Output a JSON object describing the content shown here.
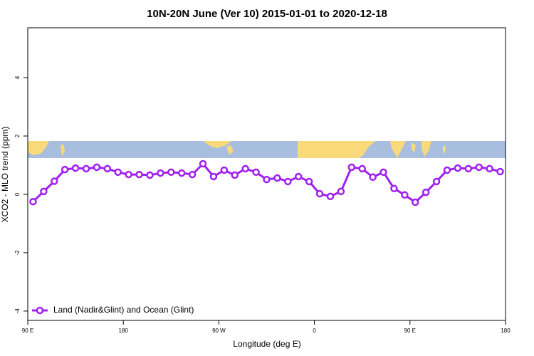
{
  "chart_data": {
    "type": "line",
    "title": "10N-20N June (Ver 10)   2015-01-01 to 2020-12-18",
    "xlabel": "Longitude (deg E)",
    "ylabel": "XCO2 - MLO trend (ppm)",
    "x": [
      95,
      105,
      115,
      125,
      135,
      145,
      155,
      165,
      175,
      185,
      195,
      205,
      215,
      225,
      235,
      245,
      255,
      265,
      275,
      285,
      295,
      305,
      315,
      325,
      335,
      345,
      355,
      365,
      375,
      385,
      395,
      405,
      415,
      425,
      435,
      445,
      455,
      465,
      475,
      485,
      495,
      505,
      515,
      525,
      535
    ],
    "series": [
      {
        "name": "Land (Nadir&Glint) and Ocean (Glint)",
        "color": "#a020f0",
        "values": [
          -0.25,
          0.1,
          0.45,
          0.85,
          0.9,
          0.88,
          0.93,
          0.88,
          0.76,
          0.68,
          0.68,
          0.66,
          0.73,
          0.76,
          0.73,
          0.68,
          1.05,
          0.61,
          0.83,
          0.66,
          0.88,
          0.76,
          0.51,
          0.56,
          0.44,
          0.61,
          0.44,
          0.02,
          -0.07,
          0.1,
          0.93,
          0.88,
          0.59,
          0.76,
          0.2,
          -0.02,
          -0.27,
          0.07,
          0.44,
          0.83,
          0.9,
          0.88,
          0.93,
          0.88,
          0.78
        ]
      }
    ],
    "xlim": [
      90,
      540
    ],
    "xticks": [
      {
        "value": 90,
        "label": "90 E"
      },
      180,
      {
        "value": 270,
        "label": "90 W"
      },
      {
        "value": 360,
        "label": "0"
      },
      {
        "value": 450,
        "label": "90 E"
      },
      {
        "value": 540,
        "label": "180"
      }
    ],
    "ylim": [
      -4.32,
      5.71
    ],
    "yticks": [
      -4,
      -2,
      0,
      2,
      4
    ],
    "legend": "bottom-left"
  }
}
